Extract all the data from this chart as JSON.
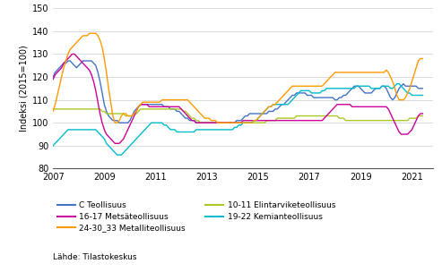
{
  "ylabel": "Indeksi (2015=100)",
  "source_text": "Lähde: Tilastokeskus",
  "xlim": [
    2007.0,
    2021.83
  ],
  "ylim": [
    80,
    150
  ],
  "yticks": [
    80,
    90,
    100,
    110,
    120,
    130,
    140,
    150
  ],
  "xticks": [
    2007,
    2009,
    2011,
    2013,
    2015,
    2017,
    2019,
    2021
  ],
  "series": {
    "C Teollisuus": {
      "color": "#4472C4",
      "data": [
        120,
        122,
        123,
        124,
        125,
        126,
        126,
        127,
        127,
        126,
        125,
        124,
        125,
        126,
        127,
        127,
        127,
        127,
        127,
        126,
        125,
        122,
        118,
        113,
        108,
        105,
        103,
        102,
        101,
        101,
        101,
        100,
        100,
        100,
        100,
        100,
        101,
        103,
        105,
        106,
        107,
        108,
        108,
        108,
        108,
        108,
        108,
        108,
        108,
        108,
        108,
        108,
        107,
        107,
        107,
        106,
        106,
        106,
        105,
        105,
        104,
        103,
        102,
        102,
        101,
        101,
        101,
        100,
        100,
        100,
        100,
        100,
        100,
        100,
        100,
        100,
        100,
        100,
        100,
        100,
        100,
        100,
        100,
        100,
        100,
        100,
        101,
        101,
        101,
        102,
        103,
        103,
        104,
        104,
        104,
        104,
        104,
        104,
        104,
        104,
        104,
        105,
        105,
        105,
        106,
        106,
        107,
        108,
        108,
        109,
        110,
        111,
        112,
        112,
        113,
        113,
        113,
        113,
        113,
        112,
        112,
        112,
        111,
        111,
        111,
        111,
        111,
        111,
        111,
        111,
        111,
        111,
        110,
        110,
        111,
        111,
        112,
        112,
        113,
        114,
        115,
        116,
        116,
        116,
        115,
        114,
        113,
        113,
        113,
        113,
        114,
        115,
        115,
        115,
        116,
        116,
        115,
        113,
        111,
        110,
        111,
        113,
        115,
        116,
        117,
        116,
        116,
        116,
        116,
        116,
        116,
        115,
        115,
        115
      ]
    },
    "10-11 Elintarviketeollisuus": {
      "color": "#A9C923",
      "data": [
        106,
        106,
        106,
        106,
        106,
        106,
        106,
        106,
        106,
        106,
        106,
        106,
        106,
        106,
        106,
        106,
        106,
        106,
        106,
        106,
        106,
        106,
        106,
        105,
        105,
        104,
        104,
        104,
        104,
        104,
        104,
        104,
        104,
        104,
        103,
        103,
        103,
        103,
        104,
        104,
        105,
        106,
        106,
        106,
        106,
        106,
        106,
        106,
        106,
        106,
        106,
        106,
        106,
        106,
        106,
        106,
        106,
        106,
        106,
        106,
        106,
        105,
        105,
        104,
        103,
        102,
        102,
        101,
        101,
        100,
        100,
        100,
        100,
        100,
        100,
        100,
        100,
        100,
        100,
        100,
        100,
        100,
        100,
        100,
        100,
        100,
        100,
        100,
        100,
        100,
        100,
        100,
        100,
        100,
        100,
        100,
        100,
        100,
        100,
        100,
        101,
        101,
        101,
        101,
        101,
        102,
        102,
        102,
        102,
        102,
        102,
        102,
        102,
        102,
        103,
        103,
        103,
        103,
        103,
        103,
        103,
        103,
        103,
        103,
        103,
        103,
        103,
        103,
        103,
        103,
        103,
        103,
        103,
        103,
        102,
        102,
        102,
        101,
        101,
        101,
        101,
        101,
        101,
        101,
        101,
        101,
        101,
        101,
        101,
        101,
        101,
        101,
        101,
        101,
        101,
        101,
        101,
        101,
        101,
        101,
        101,
        101,
        101,
        101,
        101,
        101,
        101,
        102,
        102,
        102,
        102,
        103,
        103,
        103
      ]
    },
    "16-17 Metsäteollisuus": {
      "color": "#CC0099",
      "data": [
        119,
        121,
        122,
        123,
        124,
        126,
        127,
        128,
        129,
        130,
        130,
        129,
        128,
        127,
        126,
        125,
        124,
        123,
        121,
        118,
        114,
        109,
        104,
        100,
        97,
        95,
        94,
        93,
        92,
        91,
        91,
        91,
        92,
        93,
        95,
        97,
        99,
        101,
        103,
        105,
        107,
        108,
        108,
        108,
        108,
        107,
        107,
        107,
        107,
        107,
        107,
        107,
        107,
        107,
        107,
        107,
        107,
        107,
        107,
        107,
        106,
        105,
        104,
        103,
        102,
        101,
        101,
        100,
        100,
        100,
        100,
        100,
        100,
        100,
        100,
        100,
        100,
        100,
        100,
        100,
        100,
        100,
        100,
        100,
        100,
        100,
        100,
        100,
        100,
        101,
        101,
        101,
        101,
        101,
        101,
        101,
        101,
        101,
        101,
        101,
        101,
        101,
        101,
        101,
        101,
        101,
        101,
        101,
        101,
        101,
        101,
        101,
        101,
        101,
        101,
        101,
        101,
        101,
        101,
        101,
        101,
        101,
        101,
        101,
        101,
        101,
        101,
        102,
        103,
        104,
        105,
        106,
        107,
        108,
        108,
        108,
        108,
        108,
        108,
        108,
        107,
        107,
        107,
        107,
        107,
        107,
        107,
        107,
        107,
        107,
        107,
        107,
        107,
        107,
        107,
        107,
        107,
        106,
        104,
        102,
        100,
        98,
        96,
        95,
        95,
        95,
        95,
        96,
        97,
        99,
        101,
        103,
        104,
        104
      ]
    },
    "19-22 Kemianteollisuus": {
      "color": "#00BBCC",
      "data": [
        90,
        91,
        92,
        93,
        94,
        95,
        96,
        97,
        97,
        97,
        97,
        97,
        97,
        97,
        97,
        97,
        97,
        97,
        97,
        97,
        97,
        96,
        95,
        94,
        93,
        91,
        90,
        89,
        88,
        87,
        86,
        86,
        86,
        87,
        88,
        89,
        90,
        91,
        92,
        93,
        94,
        95,
        96,
        97,
        98,
        99,
        100,
        100,
        100,
        100,
        100,
        100,
        99,
        99,
        98,
        97,
        97,
        97,
        96,
        96,
        96,
        96,
        96,
        96,
        96,
        96,
        96,
        97,
        97,
        97,
        97,
        97,
        97,
        97,
        97,
        97,
        97,
        97,
        97,
        97,
        97,
        97,
        97,
        97,
        97,
        98,
        98,
        99,
        99,
        100,
        100,
        100,
        100,
        100,
        101,
        101,
        102,
        103,
        104,
        105,
        106,
        107,
        107,
        108,
        108,
        108,
        108,
        108,
        108,
        108,
        108,
        109,
        110,
        111,
        112,
        113,
        114,
        114,
        114,
        114,
        114,
        113,
        113,
        113,
        113,
        113,
        114,
        114,
        115,
        115,
        115,
        115,
        115,
        115,
        115,
        115,
        115,
        115,
        115,
        115,
        115,
        115,
        116,
        116,
        116,
        116,
        116,
        116,
        116,
        115,
        115,
        115,
        115,
        115,
        116,
        116,
        116,
        116,
        115,
        115,
        116,
        117,
        117,
        116,
        115,
        114,
        113,
        113,
        112,
        112,
        112,
        112,
        112,
        112
      ]
    },
    "24-30_33 Metalliteollisuus": {
      "color": "#FF9900",
      "data": [
        105,
        108,
        112,
        116,
        120,
        124,
        127,
        130,
        132,
        133,
        134,
        135,
        136,
        137,
        138,
        138,
        138,
        139,
        139,
        139,
        139,
        138,
        136,
        133,
        128,
        122,
        115,
        109,
        103,
        100,
        100,
        101,
        103,
        104,
        104,
        103,
        103,
        103,
        104,
        105,
        107,
        108,
        109,
        109,
        109,
        109,
        109,
        109,
        109,
        109,
        109,
        110,
        110,
        110,
        110,
        110,
        110,
        110,
        110,
        110,
        110,
        110,
        110,
        110,
        109,
        108,
        107,
        106,
        105,
        104,
        103,
        102,
        102,
        102,
        101,
        101,
        101,
        100,
        100,
        100,
        100,
        100,
        100,
        100,
        100,
        100,
        100,
        100,
        100,
        100,
        100,
        100,
        100,
        100,
        101,
        101,
        102,
        103,
        104,
        105,
        106,
        107,
        107,
        108,
        108,
        109,
        110,
        111,
        112,
        113,
        114,
        115,
        116,
        116,
        116,
        116,
        116,
        116,
        116,
        116,
        116,
        116,
        116,
        116,
        116,
        116,
        116,
        117,
        118,
        119,
        120,
        121,
        122,
        122,
        122,
        122,
        122,
        122,
        122,
        122,
        122,
        122,
        122,
        122,
        122,
        122,
        122,
        122,
        122,
        122,
        122,
        122,
        122,
        122,
        122,
        122,
        123,
        122,
        120,
        118,
        115,
        112,
        110,
        110,
        110,
        111,
        113,
        115,
        118,
        121,
        124,
        127,
        128,
        128
      ]
    }
  }
}
